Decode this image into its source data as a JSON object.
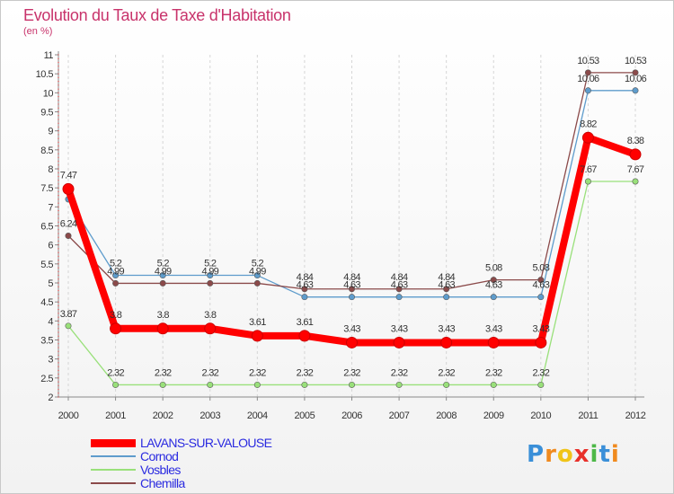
{
  "chart_data": {
    "type": "line",
    "title": "Evolution du Taux de Taxe d'Habitation",
    "subtitle": "(en %)",
    "xlabel": "",
    "ylabel": "",
    "ylim": [
      2,
      11
    ],
    "yticks": [
      "2",
      "2.5",
      "3",
      "3.5",
      "4",
      "4.5",
      "5",
      "5.5",
      "6",
      "6.5",
      "7",
      "7.5",
      "8",
      "8.5",
      "9",
      "9.5",
      "10",
      "10.5",
      "11"
    ],
    "grid": "vertical",
    "categories": [
      "2000",
      "2001",
      "2002",
      "2003",
      "2004",
      "2005",
      "2006",
      "2007",
      "2008",
      "2009",
      "2010",
      "2011",
      "2012"
    ],
    "series": [
      {
        "name": "LAVANS-SUR-VALOUSE",
        "color": "#ff0000",
        "values": [
          7.47,
          3.8,
          3.8,
          3.8,
          3.61,
          3.61,
          3.43,
          3.43,
          3.43,
          3.43,
          3.43,
          8.82,
          8.38
        ],
        "labels": [
          "7.47",
          "3.8",
          "3.8",
          "3.8",
          "3.61",
          "3.61",
          "3.43",
          "3.43",
          "3.43",
          "3.43",
          "3.43",
          "8.82",
          "8.38"
        ]
      },
      {
        "name": "Cornod",
        "color": "#5e9ccc",
        "values": [
          7.2,
          5.2,
          5.2,
          5.2,
          5.2,
          4.63,
          4.63,
          4.63,
          4.63,
          4.63,
          4.63,
          10.06,
          10.06
        ],
        "labels": [
          "",
          "5.2",
          "5.2",
          "5.2",
          "5.2",
          "4.63",
          "4.63",
          "4.63",
          "4.63",
          "4.63",
          "4.63",
          "10.06",
          "10.06"
        ]
      },
      {
        "name": "Vosbles",
        "color": "#99e07a",
        "values": [
          3.87,
          2.32,
          2.32,
          2.32,
          2.32,
          2.32,
          2.32,
          2.32,
          2.32,
          2.32,
          2.32,
          7.67,
          7.67
        ],
        "labels": [
          "3.87",
          "2.32",
          "2.32",
          "2.32",
          "2.32",
          "2.32",
          "2.32",
          "2.32",
          "2.32",
          "2.32",
          "2.32",
          "7.67",
          "7.67"
        ]
      },
      {
        "name": "Chemilla",
        "color": "#8b4a4a",
        "values": [
          6.24,
          4.99,
          4.99,
          4.99,
          4.99,
          4.84,
          4.84,
          4.84,
          4.84,
          5.08,
          5.08,
          10.53,
          10.53
        ],
        "labels": [
          "6.24",
          "4.99",
          "4.99",
          "4.99",
          "4.99",
          "4.84",
          "4.84",
          "4.84",
          "4.84",
          "5.08",
          "5.08",
          "10.53",
          "10.53"
        ]
      }
    ]
  },
  "logo": {
    "letters": [
      "P",
      "r",
      "o",
      "x",
      "i",
      "t",
      "i"
    ],
    "colors": [
      "#3a8fd8",
      "#f08a1e",
      "#f0c419",
      "#e8302a",
      "#4db848",
      "#3a8fd8",
      "#f08a1e"
    ]
  }
}
